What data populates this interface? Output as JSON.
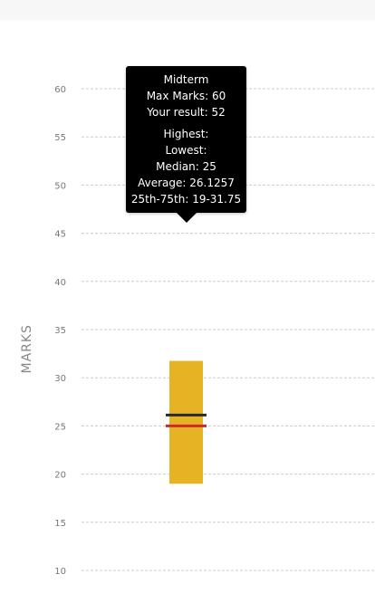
{
  "chart_data": {
    "type": "boxplot",
    "ylabel": "MARKS",
    "ylim": [
      10,
      60
    ],
    "yticks": [
      10,
      15,
      20,
      25,
      30,
      35,
      40,
      45,
      50,
      55,
      60
    ],
    "grid": true,
    "series": [
      {
        "q1": 19,
        "q3": 31.75,
        "median": 25,
        "average": 26.1257,
        "result": 52,
        "box_color": "#e5b323",
        "median_color": "#2a2a2a",
        "average_color": "#d0282a"
      }
    ]
  },
  "tooltip": {
    "title": "Midterm",
    "max_marks": "Max Marks: 60",
    "your_result": "Your result: 52",
    "highest": "Highest:",
    "lowest": "Lowest:",
    "median": "Median: 25",
    "average": "Average: 26.1257",
    "iqr": "25th-75th: 19-31.75"
  },
  "colors": {
    "grid": "#cccccc",
    "tick_label": "#777777",
    "axis_label": "#888888",
    "topbar": "#f7f7f7"
  }
}
